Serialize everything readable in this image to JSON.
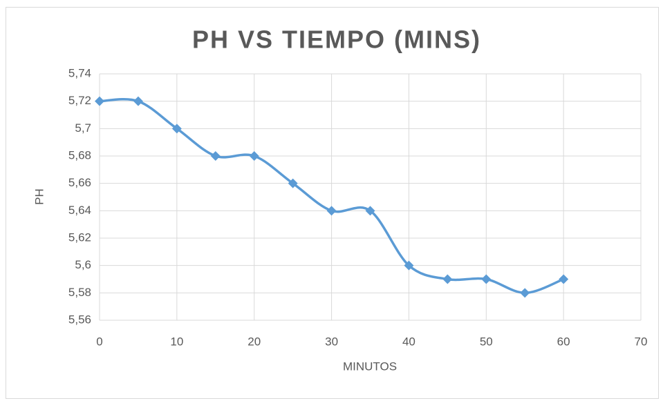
{
  "chart_data": {
    "type": "scatter-line",
    "title": "PH VS TIEMPO (MINS)",
    "x_label": "MINUTOS",
    "y_label": "PH",
    "series": [
      {
        "name": "PH",
        "color": "#5b9bd5",
        "x": [
          0,
          5,
          10,
          15,
          20,
          25,
          30,
          35,
          40,
          45,
          50,
          55,
          60
        ],
        "values": [
          5.72,
          5.72,
          5.7,
          5.68,
          5.68,
          5.66,
          5.64,
          5.64,
          5.6,
          5.59,
          5.59,
          5.58,
          5.59
        ]
      }
    ],
    "xlim": [
      0,
      70
    ],
    "xticks": [
      0,
      10,
      20,
      30,
      40,
      50,
      60,
      70
    ],
    "ylim": [
      5.56,
      5.74
    ],
    "yticks": [
      {
        "value": 5.56,
        "label": "5,56"
      },
      {
        "value": 5.58,
        "label": "5,58"
      },
      {
        "value": 5.6,
        "label": "5,6"
      },
      {
        "value": 5.62,
        "label": "5,62"
      },
      {
        "value": 5.64,
        "label": "5,64"
      },
      {
        "value": 5.66,
        "label": "5,66"
      },
      {
        "value": 5.68,
        "label": "5,68"
      },
      {
        "value": 5.7,
        "label": "5,7"
      },
      {
        "value": 5.72,
        "label": "5,72"
      },
      {
        "value": 5.74,
        "label": "5,74"
      }
    ],
    "grid": true,
    "smooth": true
  }
}
